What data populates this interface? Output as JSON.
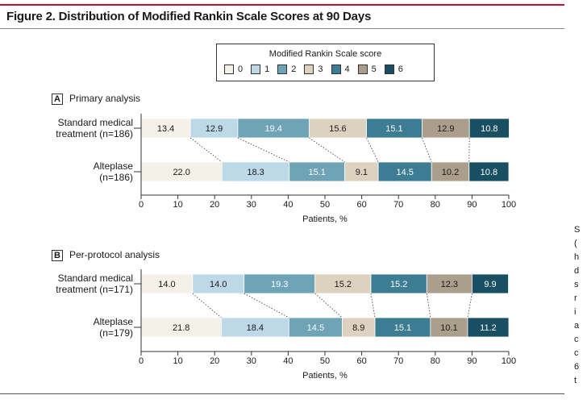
{
  "figure": {
    "title": "Figure 2. Distribution of Modified Rankin Scale Scores at 90 Days"
  },
  "legend": {
    "title": "Modified Rankin Scale score",
    "items": [
      {
        "label": "0",
        "color": "#f3f1e8"
      },
      {
        "label": "1",
        "color": "#bdd8e6"
      },
      {
        "label": "2",
        "color": "#6fa3b6"
      },
      {
        "label": "3",
        "color": "#ddd2bf"
      },
      {
        "label": "4",
        "color": "#3c7d93"
      },
      {
        "label": "5",
        "color": "#ab9e8b"
      },
      {
        "label": "6",
        "color": "#194f62"
      }
    ]
  },
  "sidebar": {
    "letters": "S\n(\nh\nd\ns\nr\ni\na\nc\nc\n6\nt"
  },
  "chart_data": [
    {
      "type": "bar",
      "stacked": true,
      "orientation": "horizontal",
      "panel_letter": "A",
      "title": "Primary analysis",
      "xlabel": "Patients, %",
      "xlim": [
        0,
        100
      ],
      "xticks": [
        "0",
        "10",
        "20",
        "30",
        "40",
        "50",
        "60",
        "70",
        "80",
        "90",
        "100"
      ],
      "categories": [
        "0",
        "1",
        "2",
        "3",
        "4",
        "5",
        "6"
      ],
      "rows": [
        {
          "label_line1": "Standard medical",
          "label_line2": "treatment (n=186)",
          "values": [
            13.4,
            12.9,
            19.4,
            15.6,
            15.1,
            12.9,
            10.8
          ],
          "labels": [
            "13.4",
            "12.9",
            "19.4",
            "15.6",
            "15.1",
            "12.9",
            "10.8"
          ]
        },
        {
          "label_line1": "Alteplase",
          "label_line2": "(n=186)",
          "values": [
            22.0,
            18.3,
            15.1,
            9.1,
            14.5,
            10.2,
            10.8
          ],
          "labels": [
            "22.0",
            "18.3",
            "15.1",
            "9.1",
            "14.5",
            "10.2",
            "10.8"
          ]
        }
      ]
    },
    {
      "type": "bar",
      "stacked": true,
      "orientation": "horizontal",
      "panel_letter": "B",
      "title": "Per-protocol analysis",
      "xlabel": "Patients, %",
      "xlim": [
        0,
        100
      ],
      "xticks": [
        "0",
        "10",
        "20",
        "30",
        "40",
        "50",
        "60",
        "70",
        "80",
        "90",
        "100"
      ],
      "categories": [
        "0",
        "1",
        "2",
        "3",
        "4",
        "5",
        "6"
      ],
      "rows": [
        {
          "label_line1": "Standard medical",
          "label_line2": "treatment (n=171)",
          "values": [
            14.0,
            14.0,
            19.3,
            15.2,
            15.2,
            12.3,
            9.9
          ],
          "labels": [
            "14.0",
            "14.0",
            "19.3",
            "15.2",
            "15.2",
            "12.3",
            "9.9"
          ]
        },
        {
          "label_line1": "Alteplase",
          "label_line2": "(n=179)",
          "values": [
            21.8,
            18.4,
            14.5,
            8.9,
            15.1,
            10.1,
            11.2
          ],
          "labels": [
            "21.8",
            "18.4",
            "14.5",
            "8.9",
            "15.1",
            "10.1",
            "11.2"
          ]
        }
      ]
    }
  ]
}
